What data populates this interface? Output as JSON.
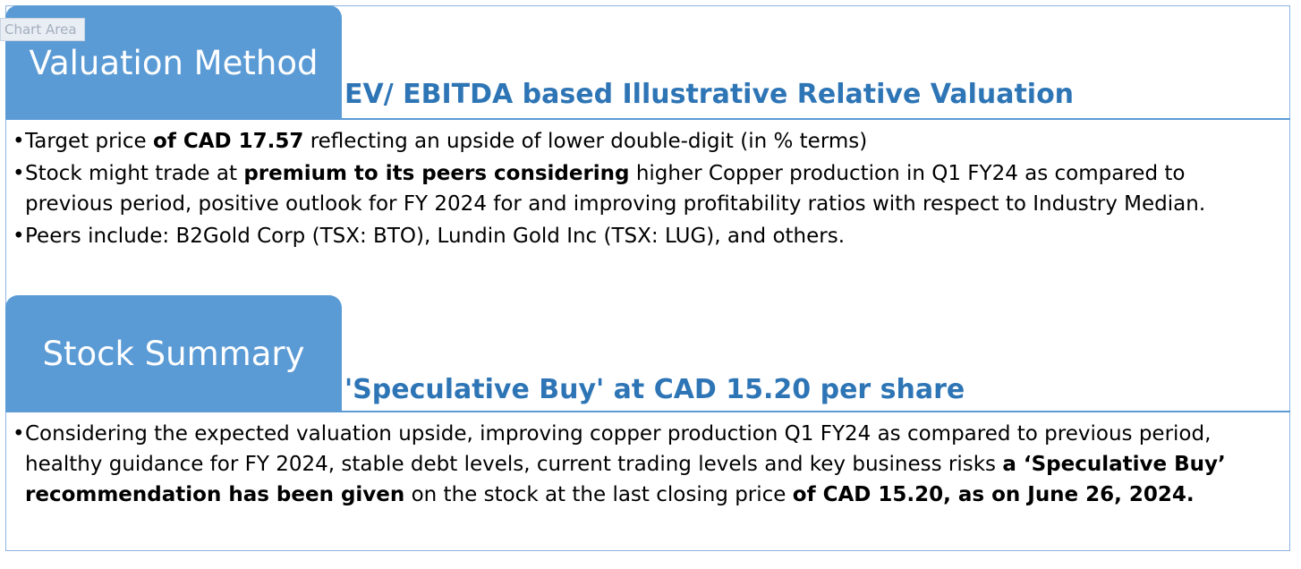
{
  "chart_area_label": "Chart Area",
  "valuation": {
    "tab_label": "Valuation Method",
    "subtitle": "EV/ EBITDA based Illustrative Relative Valuation",
    "bullet1": {
      "t1": "Target price ",
      "b1": "of CAD 17.57",
      "t2": " reflecting an upside of lower double-digit (in % terms)"
    },
    "bullet2": {
      "t1": "Stock might trade at ",
      "b1": "premium to its peers considering",
      "t2": "  higher Copper production in Q1 FY24 as compared to previous period, positive outlook for FY 2024 for and improving profitability ratios with respect to Industry Median."
    },
    "bullet3": {
      "t1": "Peers include:  B2Gold Corp (TSX: BTO), Lundin Gold Inc (TSX: LUG), and others."
    }
  },
  "summary": {
    "tab_label": "Stock Summary",
    "subtitle": "'Speculative Buy' at CAD 15.20 per share",
    "bullet1": {
      "t1": "Considering the expected valuation upside, improving copper production Q1 FY24 as compared to previous period, healthy guidance for FY 2024, stable debt levels, current trading levels and key business risks ",
      "b1": "a ‘Speculative Buy’ recommendation has been given",
      "t2": " on the stock at the last closing price ",
      "b2": "of CAD 15.20, as on June 26, 2024."
    }
  },
  "bullet_char": "•",
  "colors": {
    "tab_fill": "#5b9bd5",
    "subtitle_text": "#2e75b6",
    "frame_border": "#8eb4e3"
  }
}
